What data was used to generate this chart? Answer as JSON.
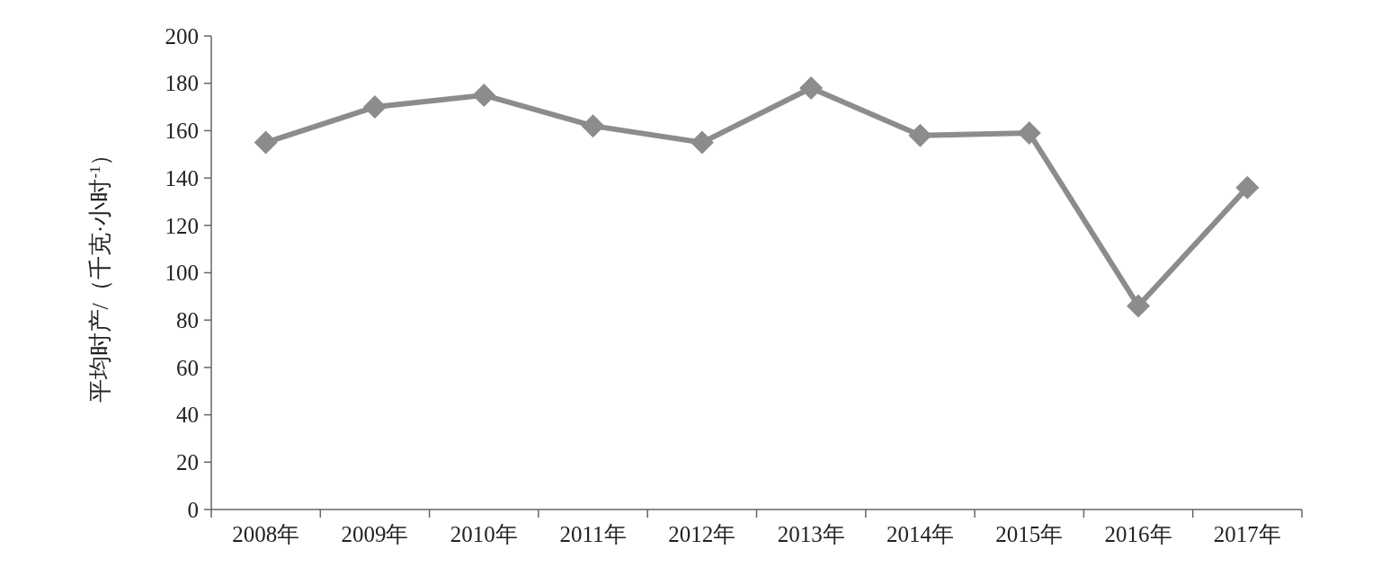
{
  "chart_data": {
    "type": "line",
    "ylabel": "平均时产/（千克·小时$^{-1}$）",
    "categories": [
      "2008年",
      "2009年",
      "2010年",
      "2011年",
      "2012年",
      "2013年",
      "2014年",
      "2015年",
      "2016年",
      "2017年"
    ],
    "series": [
      {
        "color": "#8c8c8c",
        "values": [
          155,
          170,
          175,
          162,
          155,
          178,
          158,
          159,
          86,
          136
        ]
      }
    ],
    "ylim": [
      0,
      200
    ],
    "yticks": [
      0,
      20,
      40,
      60,
      80,
      100,
      120,
      140,
      160,
      180,
      200
    ],
    "grid": false,
    "marker": "diamond",
    "line_style": "solid"
  }
}
